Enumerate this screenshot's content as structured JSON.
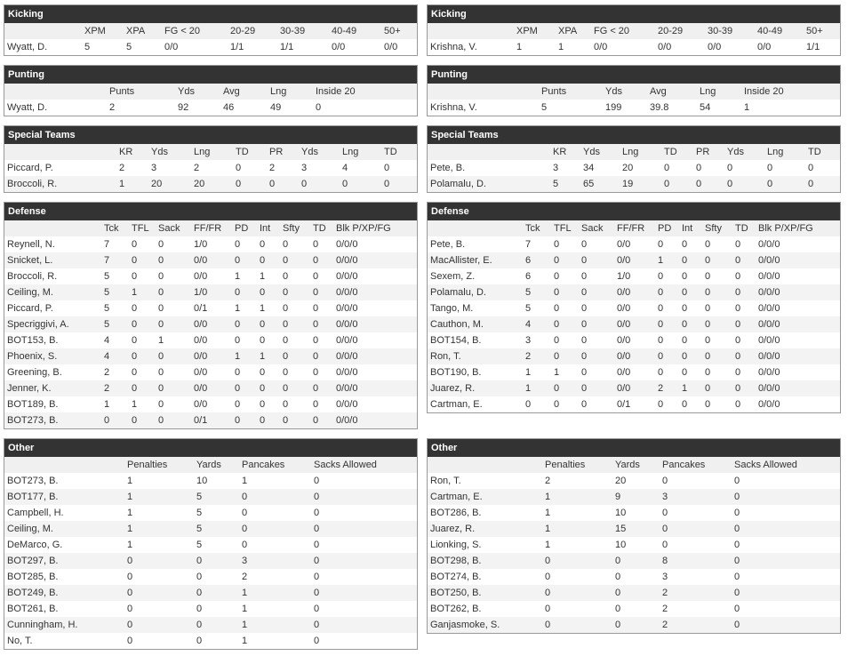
{
  "left": [
    {
      "title": "Kicking",
      "columns": [
        "XPM",
        "XPA",
        "FG < 20",
        "20-29",
        "30-39",
        "40-49",
        "50+"
      ],
      "rows": [
        [
          "Wyatt, D.",
          5,
          5,
          "0/0",
          "1/1",
          "1/1",
          "0/0",
          "0/0"
        ]
      ]
    },
    {
      "title": "Punting",
      "columns": [
        "Punts",
        "Yds",
        "Avg",
        "Lng",
        "Inside 20"
      ],
      "rows": [
        [
          "Wyatt, D.",
          2,
          92,
          46,
          49,
          0
        ]
      ]
    },
    {
      "title": "Special Teams",
      "columns": [
        "KR",
        "Yds",
        "Lng",
        "TD",
        "PR",
        "Yds",
        "Lng",
        "TD"
      ],
      "rows": [
        [
          "Piccard, P.",
          2,
          3,
          2,
          0,
          2,
          3,
          4,
          0
        ],
        [
          "Broccoli, R.",
          1,
          20,
          20,
          0,
          0,
          0,
          0,
          0
        ]
      ]
    },
    {
      "title": "Defense",
      "columns": [
        "Tck",
        "TFL",
        "Sack",
        "FF/FR",
        "PD",
        "Int",
        "Sfty",
        "TD",
        "Blk P/XP/FG"
      ],
      "rows": [
        [
          "Reynell, N.",
          7,
          0,
          0,
          "1/0",
          0,
          0,
          0,
          0,
          "0/0/0"
        ],
        [
          "Snicket, L.",
          7,
          0,
          0,
          "0/0",
          0,
          0,
          0,
          0,
          "0/0/0"
        ],
        [
          "Broccoli, R.",
          5,
          0,
          0,
          "0/0",
          1,
          1,
          0,
          0,
          "0/0/0"
        ],
        [
          "Ceiling, M.",
          5,
          1,
          0,
          "1/0",
          0,
          0,
          0,
          0,
          "0/0/0"
        ],
        [
          "Piccard, P.",
          5,
          0,
          0,
          "0/1",
          1,
          1,
          0,
          0,
          "0/0/0"
        ],
        [
          "Specriggivi, A.",
          5,
          0,
          0,
          "0/0",
          0,
          0,
          0,
          0,
          "0/0/0"
        ],
        [
          "BOT153, B.",
          4,
          0,
          1,
          "0/0",
          0,
          0,
          0,
          0,
          "0/0/0"
        ],
        [
          "Phoenix, S.",
          4,
          0,
          0,
          "0/0",
          1,
          1,
          0,
          0,
          "0/0/0"
        ],
        [
          "Greening, B.",
          2,
          0,
          0,
          "0/0",
          0,
          0,
          0,
          0,
          "0/0/0"
        ],
        [
          "Jenner, K.",
          2,
          0,
          0,
          "0/0",
          0,
          0,
          0,
          0,
          "0/0/0"
        ],
        [
          "BOT189, B.",
          1,
          1,
          0,
          "0/0",
          0,
          0,
          0,
          0,
          "0/0/0"
        ],
        [
          "BOT273, B.",
          0,
          0,
          0,
          "0/1",
          0,
          0,
          0,
          0,
          "0/0/0"
        ]
      ]
    },
    {
      "title": "Other",
      "columns": [
        "Penalties",
        "Yards",
        "Pancakes",
        "Sacks Allowed"
      ],
      "rows": [
        [
          "BOT273, B.",
          1,
          10,
          1,
          0
        ],
        [
          "BOT177, B.",
          1,
          5,
          0,
          0
        ],
        [
          "Campbell, H.",
          1,
          5,
          0,
          0
        ],
        [
          "Ceiling, M.",
          1,
          5,
          0,
          0
        ],
        [
          "DeMarco, G.",
          1,
          5,
          0,
          0
        ],
        [
          "BOT297, B.",
          0,
          0,
          3,
          0
        ],
        [
          "BOT285, B.",
          0,
          0,
          2,
          0
        ],
        [
          "BOT249, B.",
          0,
          0,
          1,
          0
        ],
        [
          "BOT261, B.",
          0,
          0,
          1,
          0
        ],
        [
          "Cunningham, H.",
          0,
          0,
          1,
          0
        ],
        [
          "No, T.",
          0,
          0,
          1,
          0
        ]
      ]
    }
  ],
  "right": [
    {
      "title": "Kicking",
      "columns": [
        "XPM",
        "XPA",
        "FG < 20",
        "20-29",
        "30-39",
        "40-49",
        "50+"
      ],
      "rows": [
        [
          "Krishna, V.",
          1,
          1,
          "0/0",
          "0/0",
          "0/0",
          "0/0",
          "1/1"
        ]
      ]
    },
    {
      "title": "Punting",
      "columns": [
        "Punts",
        "Yds",
        "Avg",
        "Lng",
        "Inside 20"
      ],
      "rows": [
        [
          "Krishna, V.",
          5,
          199,
          39.8,
          54,
          1
        ]
      ]
    },
    {
      "title": "Special Teams",
      "columns": [
        "KR",
        "Yds",
        "Lng",
        "TD",
        "PR",
        "Yds",
        "Lng",
        "TD"
      ],
      "rows": [
        [
          "Pete, B.",
          3,
          34,
          20,
          0,
          0,
          0,
          0,
          0
        ],
        [
          "Polamalu, D.",
          5,
          65,
          19,
          0,
          0,
          0,
          0,
          0
        ]
      ]
    },
    {
      "title": "Defense",
      "columns": [
        "Tck",
        "TFL",
        "Sack",
        "FF/FR",
        "PD",
        "Int",
        "Sfty",
        "TD",
        "Blk P/XP/FG"
      ],
      "rows": [
        [
          "Pete, B.",
          7,
          0,
          0,
          "0/0",
          0,
          0,
          0,
          0,
          "0/0/0"
        ],
        [
          "MacAllister, E.",
          6,
          0,
          0,
          "0/0",
          1,
          0,
          0,
          0,
          "0/0/0"
        ],
        [
          "Sexem, Z.",
          6,
          0,
          0,
          "1/0",
          0,
          0,
          0,
          0,
          "0/0/0"
        ],
        [
          "Polamalu, D.",
          5,
          0,
          0,
          "0/0",
          0,
          0,
          0,
          0,
          "0/0/0"
        ],
        [
          "Tango, M.",
          5,
          0,
          0,
          "0/0",
          0,
          0,
          0,
          0,
          "0/0/0"
        ],
        [
          "Cauthon, M.",
          4,
          0,
          0,
          "0/0",
          0,
          0,
          0,
          0,
          "0/0/0"
        ],
        [
          "BOT154, B.",
          3,
          0,
          0,
          "0/0",
          0,
          0,
          0,
          0,
          "0/0/0"
        ],
        [
          "Ron, T.",
          2,
          0,
          0,
          "0/0",
          0,
          0,
          0,
          0,
          "0/0/0"
        ],
        [
          "BOT190, B.",
          1,
          1,
          0,
          "0/0",
          0,
          0,
          0,
          0,
          "0/0/0"
        ],
        [
          "Juarez, R.",
          1,
          0,
          0,
          "0/0",
          2,
          1,
          0,
          0,
          "0/0/0"
        ],
        [
          "Cartman, E.",
          0,
          0,
          0,
          "0/1",
          0,
          0,
          0,
          0,
          "0/0/0"
        ]
      ]
    },
    {
      "title": "Other",
      "columns": [
        "Penalties",
        "Yards",
        "Pancakes",
        "Sacks Allowed"
      ],
      "rows": [
        [
          "Ron, T.",
          2,
          20,
          0,
          0
        ],
        [
          "Cartman, E.",
          1,
          9,
          3,
          0
        ],
        [
          "BOT286, B.",
          1,
          10,
          0,
          0
        ],
        [
          "Juarez, R.",
          1,
          15,
          0,
          0
        ],
        [
          "Lionking, S.",
          1,
          10,
          0,
          0
        ],
        [
          "BOT298, B.",
          0,
          0,
          8,
          0
        ],
        [
          "BOT274, B.",
          0,
          0,
          3,
          0
        ],
        [
          "BOT250, B.",
          0,
          0,
          2,
          0
        ],
        [
          "BOT262, B.",
          0,
          0,
          2,
          0
        ],
        [
          "Ganjasmoke, S.",
          0,
          0,
          2,
          0
        ]
      ]
    }
  ]
}
